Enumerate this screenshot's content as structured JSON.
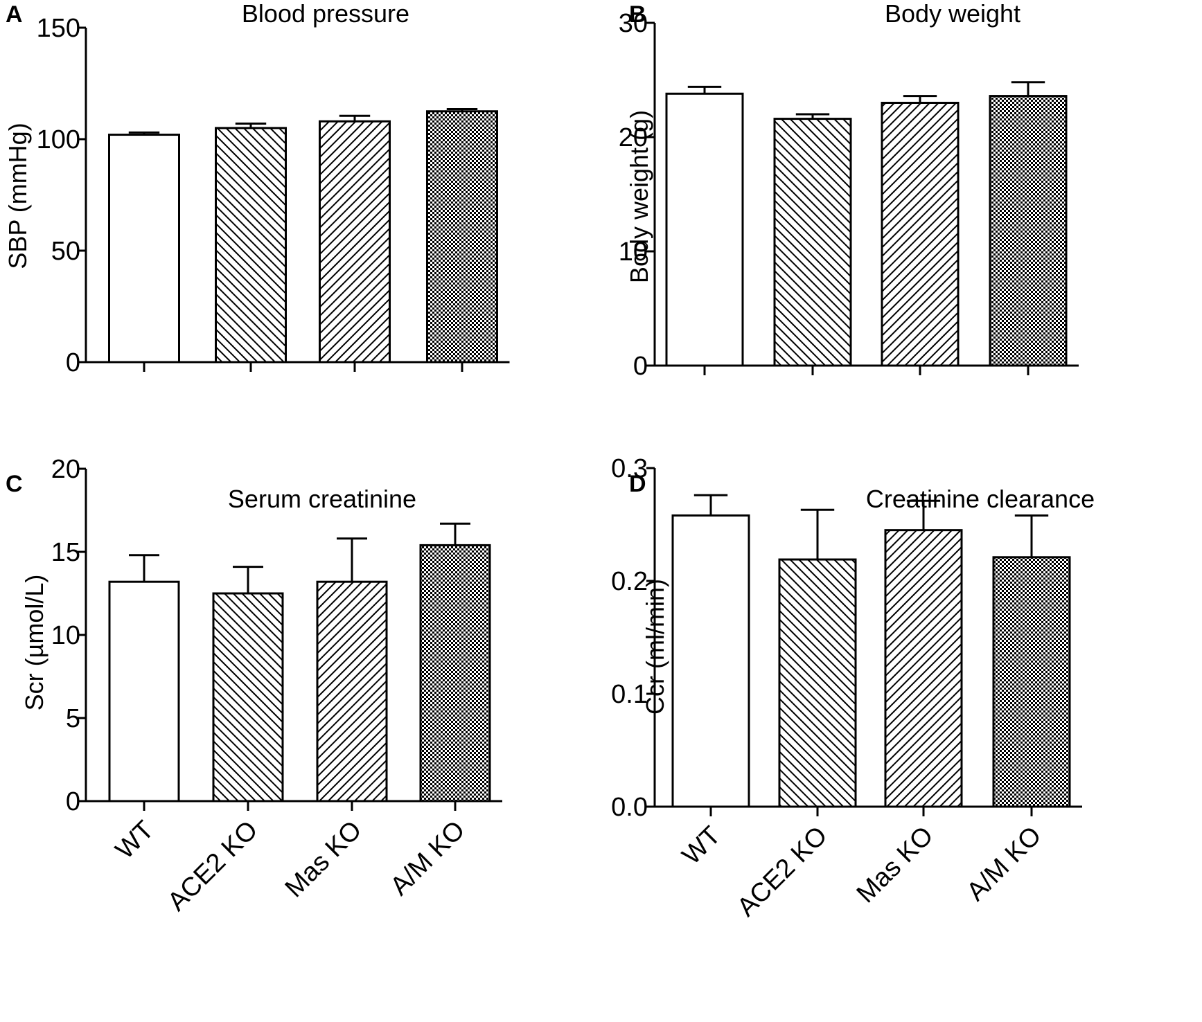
{
  "colors": {
    "stroke": "#000000",
    "fill_open": "#ffffff",
    "hatch": "#000000"
  },
  "chart_data": [
    {
      "type": "bar",
      "panel_letter": "A",
      "title": "Blood pressure",
      "xlabel": "",
      "ylabel": "SBP (mmHg)",
      "ylim": [
        0,
        150
      ],
      "yticks": [
        "0",
        "50",
        "100",
        "150"
      ],
      "ytick_values": [
        0,
        50,
        100,
        150
      ],
      "categories": [
        "WT",
        "ACE2 KO",
        "Mas KO",
        "A/M KO"
      ],
      "show_category_labels": false,
      "series": [
        {
          "values": [
            102,
            105,
            108,
            112.5
          ],
          "errors": [
            1,
            2,
            2.5,
            1
          ],
          "patterns": [
            "open",
            "hatch-left",
            "hatch-right",
            "checker"
          ]
        }
      ],
      "grid": false,
      "legend": "none"
    },
    {
      "type": "bar",
      "panel_letter": "B",
      "title": "Body weight",
      "xlabel": "",
      "ylabel": "Body weight (g)",
      "ylim": [
        0,
        30
      ],
      "yticks": [
        "0",
        "10",
        "20",
        "30"
      ],
      "ytick_values": [
        0,
        10,
        20,
        30
      ],
      "categories": [
        "WT",
        "ACE2 KO",
        "Mas KO",
        "A/M KO"
      ],
      "show_category_labels": false,
      "series": [
        {
          "values": [
            23.8,
            21.6,
            23.0,
            23.6
          ],
          "errors": [
            0.6,
            0.4,
            0.6,
            1.2
          ],
          "patterns": [
            "open",
            "hatch-left",
            "hatch-right",
            "checker"
          ]
        }
      ],
      "grid": false,
      "legend": "none"
    },
    {
      "type": "bar",
      "panel_letter": "C",
      "title": "Serum creatinine",
      "xlabel": "",
      "ylabel": "Scr (µmol/L)",
      "ylim": [
        0,
        20
      ],
      "yticks": [
        "0",
        "5",
        "10",
        "15",
        "20"
      ],
      "ytick_values": [
        0,
        5,
        10,
        15,
        20
      ],
      "categories": [
        "WT",
        "ACE2 KO",
        "Mas KO",
        "A/M KO"
      ],
      "show_category_labels": true,
      "series": [
        {
          "values": [
            13.2,
            12.5,
            13.2,
            15.4
          ],
          "errors": [
            1.6,
            1.6,
            2.6,
            1.3
          ],
          "patterns": [
            "open",
            "hatch-left",
            "hatch-right",
            "checker"
          ]
        }
      ],
      "grid": false,
      "legend": "none"
    },
    {
      "type": "bar",
      "panel_letter": "D",
      "title": "Creatinine clearance",
      "xlabel": "",
      "ylabel": "Ccr (ml/min)",
      "ylim": [
        0,
        0.3
      ],
      "yticks": [
        "0.0",
        "0.1",
        "0.2",
        "0.3"
      ],
      "ytick_values": [
        0,
        0.1,
        0.2,
        0.3
      ],
      "categories": [
        "WT",
        "ACE2 KO",
        "Mas KO",
        "A/M KO"
      ],
      "show_category_labels": true,
      "series": [
        {
          "values": [
            0.258,
            0.219,
            0.245,
            0.221
          ],
          "errors": [
            0.018,
            0.044,
            0.026,
            0.037
          ],
          "patterns": [
            "open",
            "hatch-left",
            "hatch-right",
            "checker"
          ]
        }
      ],
      "grid": false,
      "legend": "none"
    }
  ]
}
